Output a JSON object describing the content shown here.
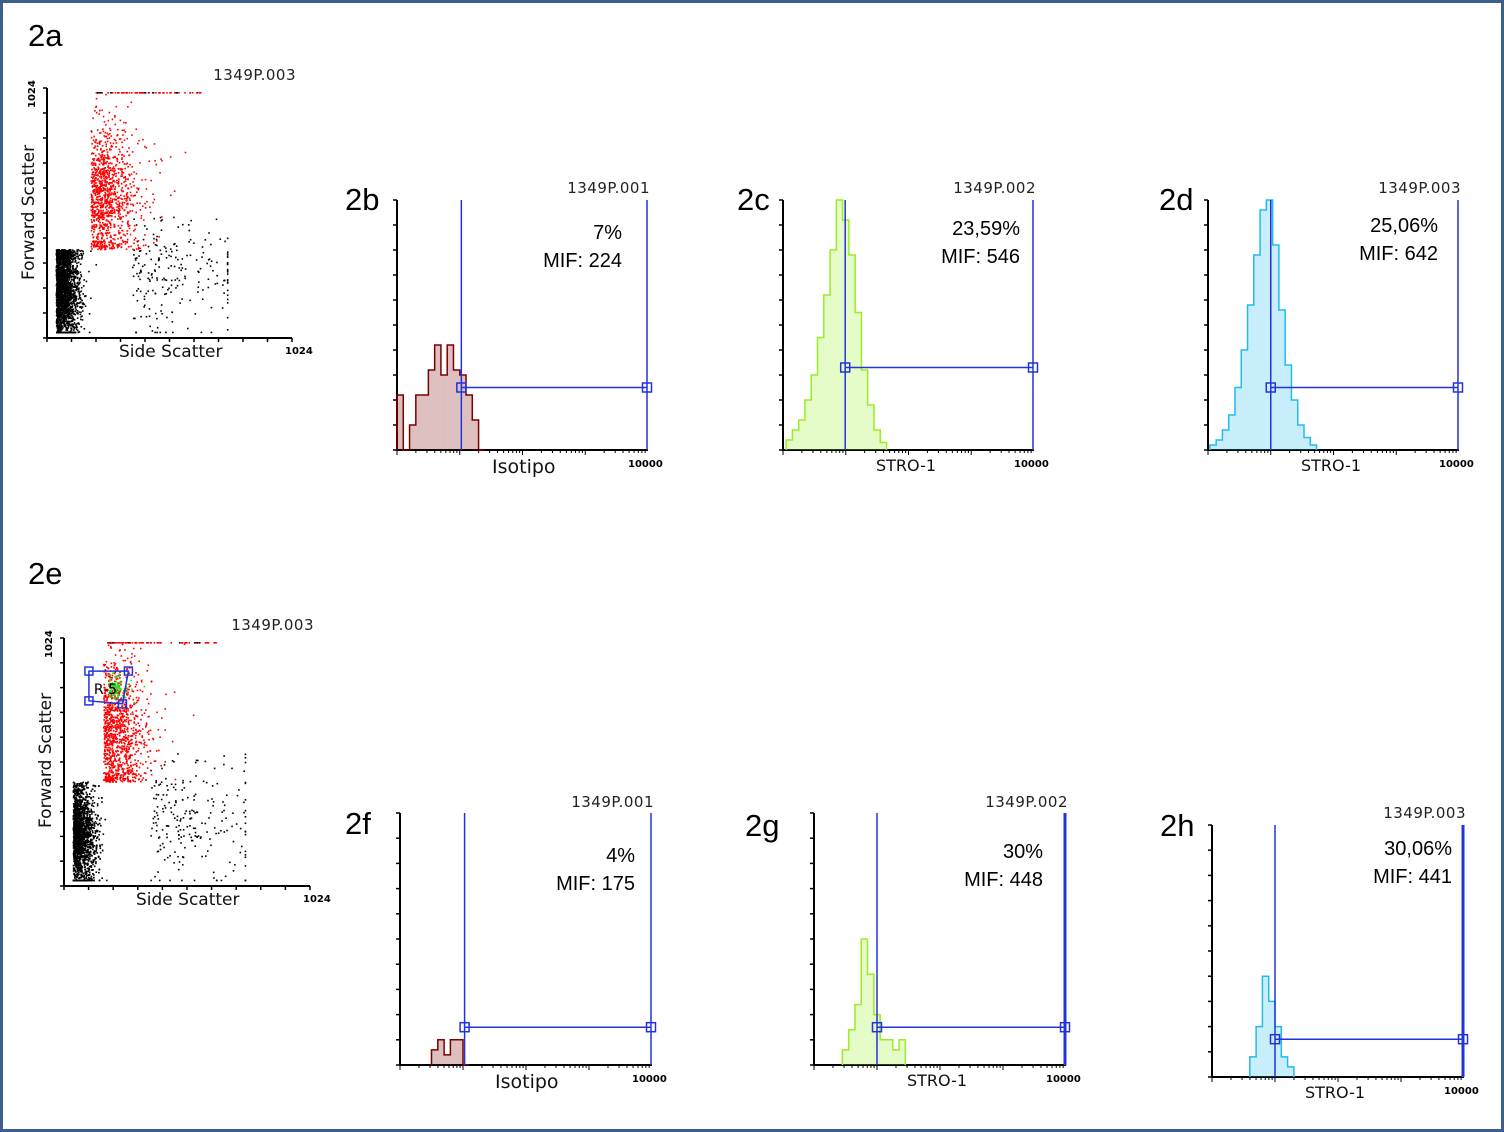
{
  "chart_data": [
    {
      "id": "2a",
      "type": "scatter",
      "label": "2a",
      "title": "1349P.003",
      "xlabel": "Side Scatter",
      "ylabel": "Forward Scatter",
      "xmax_label": "1024",
      "ymax_label": "1024",
      "xlim": [
        0,
        1024
      ],
      "ylim": [
        0,
        1024
      ],
      "clusters": [
        {
          "color": "#000000",
          "n": 2200,
          "cx": 60,
          "cy": 200,
          "sx": 45,
          "sy": 110,
          "ymax": 360
        },
        {
          "color": "#000000",
          "n": 220,
          "cx": 350,
          "cy": 250,
          "sx": 220,
          "sy": 130,
          "ymax": 500
        },
        {
          "color": "#ff0000",
          "n": 1100,
          "cx": 170,
          "cy": 590,
          "sx": 90,
          "sy": 150,
          "ymin": 360
        }
      ]
    },
    {
      "id": "2b",
      "type": "histogram",
      "label": "2b",
      "title": "1349P.001",
      "xlabel": "Isotipo",
      "xmax_label": "10000",
      "xscale": "log",
      "xlim": [
        1,
        10000
      ],
      "ylim": [
        0,
        100
      ],
      "color": "#7a0000",
      "percent": "7%",
      "mif": "MIF: 224",
      "gate": {
        "from": 10.6,
        "to": 10000,
        "level": 25
      },
      "bin_start_log": 0,
      "bin_width_log": 0.1,
      "values": [
        22,
        0,
        10,
        22,
        22,
        32,
        42,
        30,
        42,
        32,
        30,
        22,
        12,
        0
      ]
    },
    {
      "id": "2c",
      "type": "histogram",
      "label": "2c",
      "title": "1349P.002",
      "xlabel": "STRO-1",
      "xmax_label": "10000",
      "xscale": "log",
      "xlim": [
        1,
        10000
      ],
      "ylim": [
        0,
        100
      ],
      "color": "#99ee22",
      "percent": "23,59%",
      "mif": "MIF: 546",
      "gate": {
        "from": 9.8,
        "to": 10000,
        "level": 33
      },
      "bin_start_log": 0.05,
      "bin_width_log": 0.1,
      "values": [
        4,
        8,
        12,
        20,
        30,
        45,
        62,
        80,
        100,
        92,
        78,
        55,
        32,
        18,
        8,
        3
      ]
    },
    {
      "id": "2d",
      "type": "histogram",
      "label": "2d",
      "title": "1349P.003",
      "xlabel": "STRO-1",
      "xmax_label": "10000",
      "xscale": "log",
      "xlim": [
        1,
        10000
      ],
      "ylim": [
        0,
        100
      ],
      "color": "#22bbee",
      "percent": "25,06%",
      "mif": "MIF: 642",
      "gate": {
        "from": 10,
        "to": 10000,
        "level": 25
      },
      "bin_start_log": 0.03,
      "bin_width_log": 0.1,
      "values": [
        2,
        4,
        8,
        14,
        25,
        40,
        58,
        78,
        96,
        100,
        82,
        56,
        34,
        20,
        10,
        5,
        2
      ]
    },
    {
      "id": "2e",
      "type": "scatter",
      "label": "2e",
      "title": "1349P.003",
      "xlabel": "Side Scatter",
      "ylabel": "Forward Scatter",
      "xmax_label": "1024",
      "ymax_label": "1024",
      "xlim": [
        0,
        1024
      ],
      "ylim": [
        0,
        1024
      ],
      "region": {
        "name": "R-5",
        "x": [
          90,
          260
        ],
        "y": [
          760,
          900
        ]
      },
      "clusters": [
        {
          "color": "#000000",
          "n": 2200,
          "cx": 60,
          "cy": 200,
          "sx": 45,
          "sy": 110,
          "ymax": 430
        },
        {
          "color": "#000000",
          "n": 220,
          "cx": 350,
          "cy": 270,
          "sx": 220,
          "sy": 140,
          "ymax": 560
        },
        {
          "color": "#ff0000",
          "n": 1100,
          "cx": 150,
          "cy": 640,
          "sx": 80,
          "sy": 160,
          "ymin": 430
        },
        {
          "color": "#22dd22",
          "n": 120,
          "cx": 175,
          "cy": 830,
          "sx": 35,
          "sy": 25
        }
      ]
    },
    {
      "id": "2f",
      "type": "histogram",
      "label": "2f",
      "title": "1349P.001",
      "xlabel": "Isotipo",
      "xmax_label": "10000",
      "xscale": "log",
      "xlim": [
        1,
        10000
      ],
      "ylim": [
        0,
        100
      ],
      "color": "#7a0000",
      "percent": "4%",
      "mif": "MIF: 175",
      "gate": {
        "from": 10.6,
        "to": 10000,
        "level": 15
      },
      "bin_start_log": 0.5,
      "bin_width_log": 0.1,
      "values": [
        6,
        10,
        4,
        10,
        10,
        0
      ]
    },
    {
      "id": "2g",
      "type": "histogram",
      "label": "2g",
      "title": "1349P.002",
      "xlabel": "STRO-1",
      "xmax_label": "10000",
      "xscale": "log",
      "xlim": [
        1,
        10000
      ],
      "ylim": [
        0,
        100
      ],
      "color": "#99ee22",
      "percent": "30%",
      "mif": "MIF: 448",
      "gate": {
        "from": 10,
        "to": 10000,
        "level": 15
      },
      "bin_start_log": 0.45,
      "bin_width_log": 0.1,
      "values": [
        6,
        14,
        24,
        50,
        36,
        20,
        10,
        10,
        6,
        10
      ]
    },
    {
      "id": "2h",
      "type": "histogram",
      "label": "2h",
      "title": "1349P.003",
      "xlabel": "STRO-1",
      "xmax_label": "10000",
      "xscale": "log",
      "xlim": [
        1,
        10000
      ],
      "ylim": [
        0,
        100
      ],
      "color": "#22bbee",
      "percent": "30,06%",
      "mif": "MIF: 441",
      "gate": {
        "from": 10,
        "to": 10000,
        "level": 15
      },
      "bin_start_log": 0.6,
      "bin_width_log": 0.1,
      "values": [
        8,
        20,
        40,
        30,
        20,
        8,
        4
      ]
    }
  ]
}
